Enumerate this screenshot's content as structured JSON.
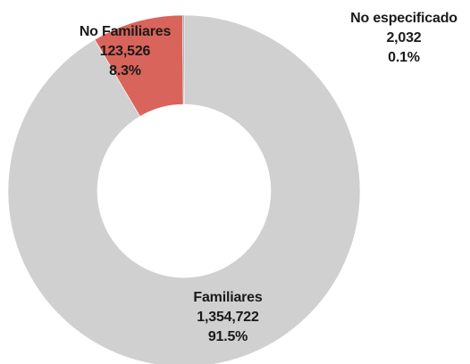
{
  "chart_data": {
    "type": "pie",
    "variant": "donut",
    "title": "",
    "slices": [
      {
        "name": "Familiares",
        "value": 1354722,
        "value_label": "1,354,722",
        "percent_label": "91.5%",
        "color": "#d0d0d0"
      },
      {
        "name": "No Familiares",
        "value": 123526,
        "value_label": "123,526",
        "percent_label": "8.3%",
        "color": "#d9645b"
      },
      {
        "name": "No especificado",
        "value": 2032,
        "value_label": "2,032",
        "percent_label": "0.1%",
        "color": "#8f8f8f"
      }
    ],
    "legend": "none",
    "label_color": "#1a1a1a"
  }
}
